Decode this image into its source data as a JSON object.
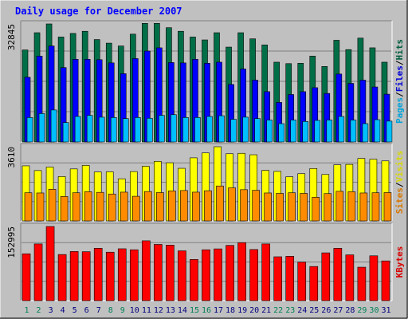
{
  "chart_data": {
    "type": "bar",
    "title": "Daily usage for December 2007",
    "x": [
      "1",
      "2",
      "3",
      "4",
      "5",
      "6",
      "7",
      "8",
      "9",
      "10",
      "11",
      "12",
      "13",
      "14",
      "15",
      "16",
      "17",
      "18",
      "19",
      "20",
      "21",
      "22",
      "23",
      "24",
      "25",
      "26",
      "27",
      "28",
      "29",
      "30",
      "31"
    ],
    "weekend_days": [
      "1",
      "2",
      "8",
      "9",
      "15",
      "16",
      "22",
      "23",
      "29",
      "30"
    ],
    "panels": [
      {
        "name": "hits-files-pages",
        "y_label": "32845",
        "y_max": 32845,
        "side_labels": [
          "Pages",
          "/",
          "Files",
          "/",
          "Hits"
        ],
        "series": [
          {
            "name": "Hits",
            "color": "#006f48",
            "values": [
              25600,
              30400,
              32845,
              29200,
              30200,
              30800,
              28500,
              27500,
              26700,
              30000,
              33000,
              33000,
              31800,
              30800,
              29200,
              28400,
              30400,
              26400,
              30400,
              28700,
              27000,
              22200,
              21800,
              21900,
              23900,
              21000,
              28300,
              25700,
              28900,
              26200,
              22200
            ]
          },
          {
            "name": "Files",
            "color": "#0000ff",
            "values": [
              18000,
              23900,
              26700,
              20700,
              23000,
              23000,
              22900,
              22000,
              19000,
              23200,
              25300,
              26200,
              22100,
              22000,
              23000,
              21900,
              22200,
              16000,
              20300,
              17200,
              14000,
              11000,
              13200,
              14000,
              15100,
              13500,
              18900,
              16300,
              17200,
              15300,
              13300
            ]
          },
          {
            "name": "Pages",
            "color": "#00bfff",
            "values": [
              6800,
              7900,
              8900,
              5400,
              7100,
              7400,
              6900,
              6800,
              6500,
              6800,
              6600,
              7400,
              7600,
              6800,
              6800,
              7100,
              7300,
              6300,
              6900,
              6500,
              6100,
              5100,
              6100,
              5700,
              6000,
              6100,
              7100,
              6100,
              5100,
              6200,
              5800
            ]
          }
        ]
      },
      {
        "name": "visits-sites",
        "y_label": "3610",
        "y_max": 3610,
        "side_labels": [
          "Sites",
          "/",
          "Visits"
        ],
        "series": [
          {
            "name": "Visits",
            "color": "#ffff00",
            "values": [
              2680,
              2450,
              2620,
              2160,
              2530,
              2700,
              2380,
              2390,
              2050,
              2400,
              2660,
              2900,
              2830,
              2560,
              3070,
              3310,
              3610,
              3270,
              3290,
              3220,
              2460,
              2410,
              2150,
              2300,
              2550,
              2260,
              2730,
              2750,
              3040,
              3000,
              2920
            ]
          },
          {
            "name": "Sites",
            "color": "#ff8c00",
            "values": [
              1370,
              1360,
              1540,
              1190,
              1370,
              1420,
              1390,
              1310,
              1400,
              1200,
              1430,
              1380,
              1460,
              1480,
              1400,
              1470,
              1700,
              1610,
              1520,
              1490,
              1360,
              1340,
              1370,
              1340,
              1150,
              1330,
              1440,
              1420,
              1360,
              1370,
              1380
            ]
          }
        ]
      },
      {
        "name": "kbytes",
        "y_label": "152995",
        "y_max": 152995,
        "side_labels": [
          "KBytes"
        ],
        "series": [
          {
            "name": "KBytes",
            "color": "#ff0000",
            "values": [
              96700,
              117000,
              152995,
              95200,
              101400,
              101000,
              108000,
              100000,
              107000,
              105000,
              123500,
              116000,
              114500,
              102800,
              85000,
              105000,
              106800,
              114000,
              119700,
              105500,
              117000,
              90500,
              91500,
              79500,
              70500,
              98600,
              108000,
              94500,
              69000,
              92500,
              82000
            ]
          }
        ]
      }
    ]
  }
}
